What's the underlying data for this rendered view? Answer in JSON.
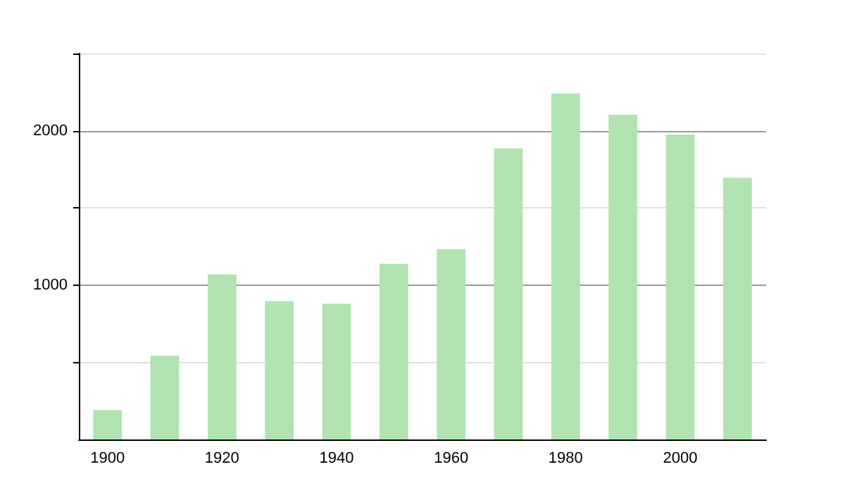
{
  "chart_data": {
    "type": "bar",
    "categories": [
      "1900",
      null,
      "1920",
      null,
      "1940",
      null,
      "1960",
      null,
      "1980",
      null,
      "2000",
      null
    ],
    "values": [
      190,
      543,
      1069,
      897,
      879,
      1138,
      1233,
      1885,
      2241,
      2103,
      1974,
      1695
    ],
    "color": "#b0e3b0",
    "ylim": [
      0,
      2500
    ],
    "yticks": [
      {
        "value": 500,
        "label": null
      },
      1000,
      {
        "value": 1500,
        "label": null
      },
      2000,
      {
        "value": 2500,
        "label": null
      }
    ],
    "grid": "y"
  }
}
